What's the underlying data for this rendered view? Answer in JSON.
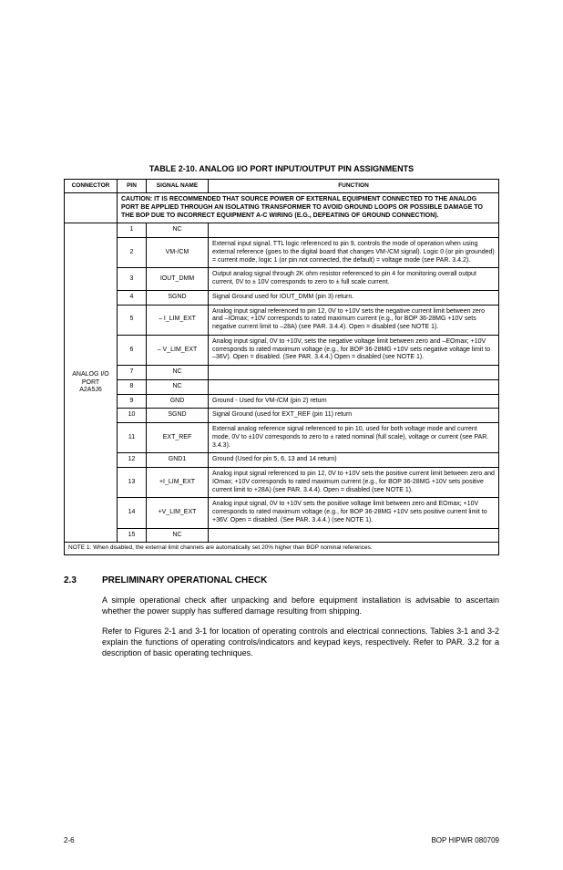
{
  "table": {
    "title": "TABLE 2-10.  ANALOG I/O PORT INPUT/OUTPUT PIN ASSIGNMENTS",
    "headers": {
      "connector": "CONNECTOR",
      "pin": "PIN",
      "signal": "SIGNAL NAME",
      "function": "FUNCTION"
    },
    "caution": "CAUTION: IT IS RECOMMENDED THAT SOURCE POWER OF EXTERNAL EQUIPMENT CONNECTED TO THE ANALOG PORT BE APPLIED THROUGH AN ISOLATING TRANSFORMER TO AVOID GROUND LOOPS OR POSSIBLE DAMAGE TO THE BOP DUE TO INCORRECT EQUIPMENT A-C WIRING (E.G., DEFEATING OF GROUND CONNECTION).",
    "connector_label": "ANALOG I/O PORT A2A5J6",
    "rows": [
      {
        "pin": "1",
        "signal": "NC",
        "function": ""
      },
      {
        "pin": "2",
        "signal": "VM-/CM",
        "function": "External input signal, TTL logic referenced to pin 9, controls the mode of operation when using external reference (goes to the digital board that changes VM-/CM signal). Logic 0 (or pin grounded) = current mode, logic 1 (or pin not connected, the default) = voltage mode (see PAR. 3.4.2)."
      },
      {
        "pin": "3",
        "signal": "IOUT_DMM",
        "function": "Output analog signal through 2K ohm resistor referenced to pin 4 for monitoring overall output current, 0V to ± 10V corresponds to zero to ± full scale current."
      },
      {
        "pin": "4",
        "signal": "SGND",
        "function": "Signal Ground used for IOUT_DMM (pin 3) return."
      },
      {
        "pin": "5",
        "signal": "– I_LIM_EXT",
        "function": "Analog input signal referenced to pin 12, 0V to +10V sets the negative current limit between zero and –IOmax; +10V corresponds to rated maximum current (e.g., for BOP 36-28MG +10V sets negative current limit to –28A) (see PAR. 3.4.4). Open = disabled (see NOTE 1)."
      },
      {
        "pin": "6",
        "signal": "– V_LIM_EXT",
        "function": "Analog input signal, 0V to +10V, sets the negative voltage limit between zero and –EOmax; +10V corresponds to rated maximum voltage (e.g., for BOP 36-28MG +10V sets negative voltage limit to –36V). Open = disabled. (See PAR. 3.4.4.) Open = disabled (see NOTE 1)."
      },
      {
        "pin": "7",
        "signal": "NC",
        "function": ""
      },
      {
        "pin": "8",
        "signal": "NC",
        "function": ""
      },
      {
        "pin": "9",
        "signal": "GND",
        "function": "Ground - Used for VM-/CM (pin 2) return"
      },
      {
        "pin": "10",
        "signal": "SGND",
        "function": "Signal Ground (used for EXT_REF (pin 11) return"
      },
      {
        "pin": "11",
        "signal": "EXT_REF",
        "function": "External analog reference signal referenced to pin 10, used for both voltage mode and current mode, 0V to ±10V corresponds to zero to ± rated nominal (full scale), voltage or current (see PAR. 3.4.3)."
      },
      {
        "pin": "12",
        "signal": "GND1",
        "function": "Ground (Used for pin 5, 6, 13 and 14 return)"
      },
      {
        "pin": "13",
        "signal": "+I_LIM_EXT",
        "function": "Analog input signal referenced to pin 12, 0V to +10V sets the positive current limit between zero and IOmax; +10V corresponds to rated maximum current (e.g., for BOP 36-28MG +10V sets positive current limit to +28A) (see PAR. 3.4.4). Open = disabled (see NOTE 1)."
      },
      {
        "pin": "14",
        "signal": "+V_LIM_EXT",
        "function": "Analog input signal, 0V to +10V sets the positive voltage limit between zero and EOmax; +10V corresponds to rated maximum voltage (e.g., for BOP 36-28MG +10V sets positive current limit to +36V. Open = disabled. (See PAR. 3.4.4.) (see NOTE 1)."
      },
      {
        "pin": "15",
        "signal": "NC",
        "function": ""
      }
    ],
    "note": "NOTE 1: When disabled, the external limit channels are automatically set 20% higher than BOP nominal references."
  },
  "section": {
    "number": "2.3",
    "title": "PRELIMINARY OPERATIONAL CHECK",
    "para1": "A simple operational check after unpacking and before equipment installation is advisable to ascertain whether the power supply has suffered damage resulting from shipping.",
    "para2": "Refer to Figures 2-1 and 3-1 for location of operating controls and electrical connections. Tables 3-1 and 3-2 explain the functions of operating controls/indicators and keypad keys, respectively. Refer to PAR. 3.2 for a description of basic operating techniques."
  },
  "footer": {
    "left": "2-6",
    "right": "BOP HIPWR 080709"
  },
  "style": {
    "page_bg": "#ffffff",
    "text_color": "#000000",
    "border_color": "#000000",
    "title_fontsize": 9,
    "body_fontsize": 9,
    "table_fontsize": 7
  }
}
